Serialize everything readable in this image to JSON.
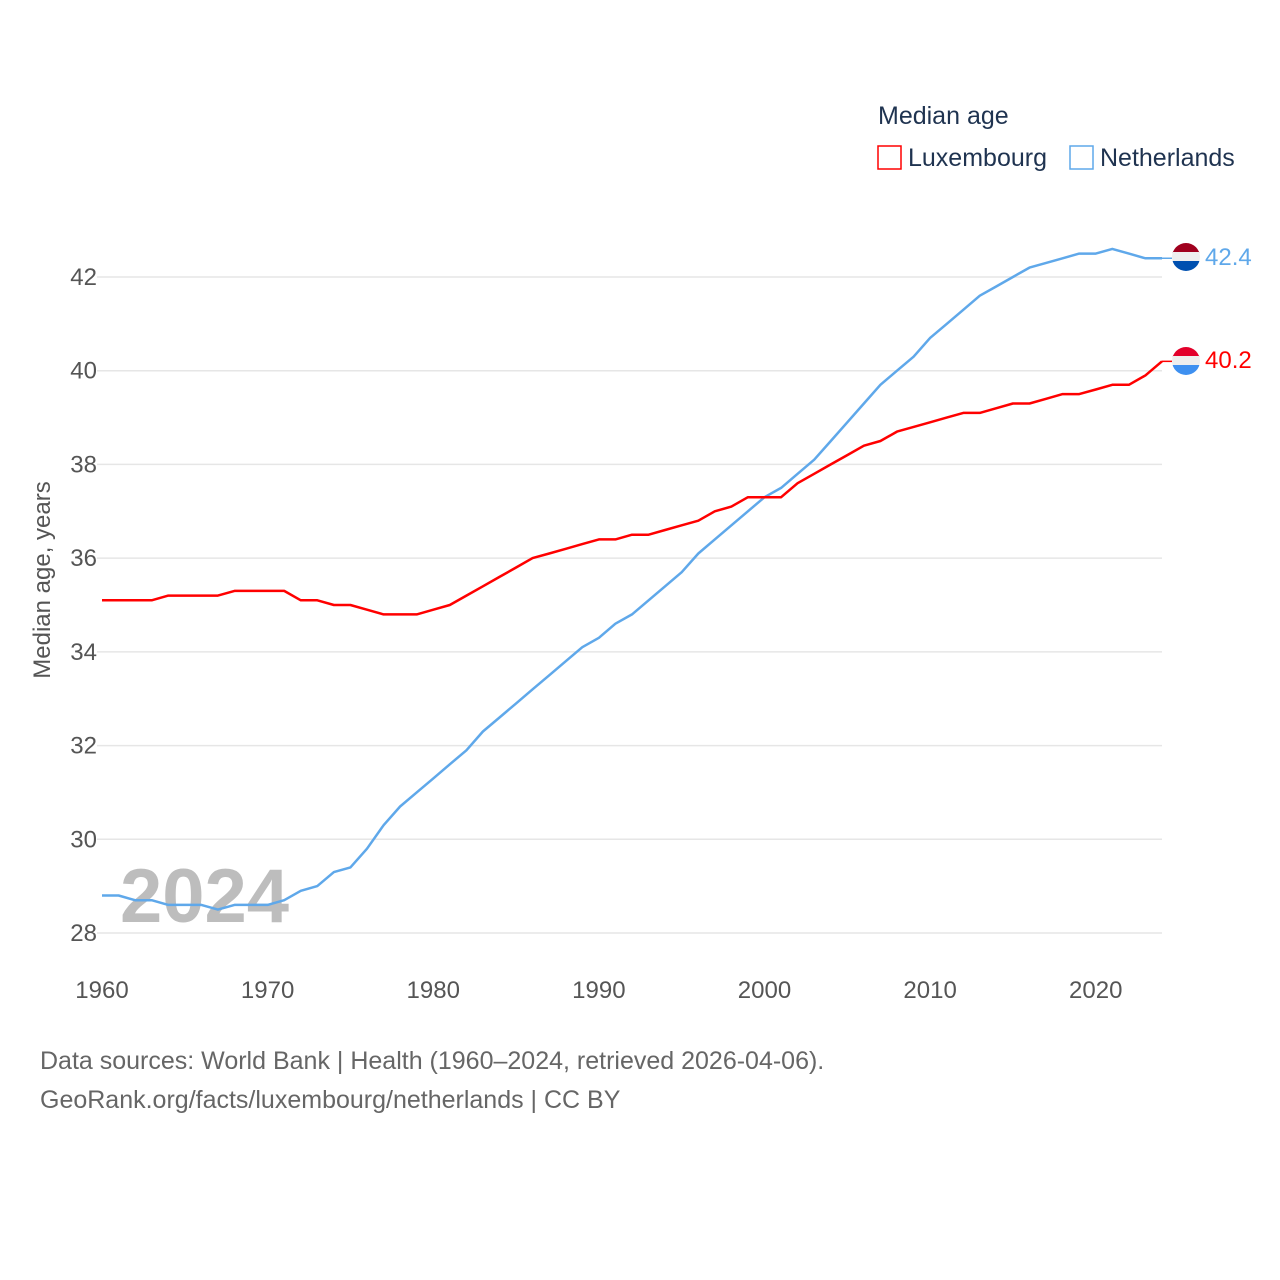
{
  "chart_data": {
    "type": "line",
    "ylabel": "Median age, years",
    "xlabel": "",
    "legend": {
      "title": "Median age",
      "placement": "top-right"
    },
    "watermark_year": "2024",
    "ylim": [
      28,
      43.3
    ],
    "xlim": [
      1960,
      2024
    ],
    "yticks": [
      28,
      30,
      32,
      34,
      36,
      38,
      40,
      42
    ],
    "xticks": [
      1960,
      1970,
      1980,
      1990,
      2000,
      2010,
      2020
    ],
    "grid": true,
    "x": [
      1960,
      1961,
      1962,
      1963,
      1964,
      1965,
      1966,
      1967,
      1968,
      1969,
      1970,
      1971,
      1972,
      1973,
      1974,
      1975,
      1976,
      1977,
      1978,
      1979,
      1980,
      1981,
      1982,
      1983,
      1984,
      1985,
      1986,
      1987,
      1988,
      1989,
      1990,
      1991,
      1992,
      1993,
      1994,
      1995,
      1996,
      1997,
      1998,
      1999,
      2000,
      2001,
      2002,
      2003,
      2004,
      2005,
      2006,
      2007,
      2008,
      2009,
      2010,
      2011,
      2012,
      2013,
      2014,
      2015,
      2016,
      2017,
      2018,
      2019,
      2020,
      2021,
      2022,
      2023,
      2024
    ],
    "series": [
      {
        "name": "Luxembourg",
        "color": "#ff0000",
        "end_label": "40.2",
        "values": [
          35.1,
          35.1,
          35.1,
          35.1,
          35.2,
          35.2,
          35.2,
          35.2,
          35.3,
          35.3,
          35.3,
          35.3,
          35.1,
          35.1,
          35.0,
          35.0,
          34.9,
          34.8,
          34.8,
          34.8,
          34.9,
          35.0,
          35.2,
          35.4,
          35.6,
          35.8,
          36.0,
          36.1,
          36.2,
          36.3,
          36.4,
          36.4,
          36.5,
          36.5,
          36.6,
          36.7,
          36.8,
          37.0,
          37.1,
          37.3,
          37.3,
          37.3,
          37.6,
          37.8,
          38.0,
          38.2,
          38.4,
          38.5,
          38.7,
          38.8,
          38.9,
          39.0,
          39.1,
          39.1,
          39.2,
          39.3,
          39.3,
          39.4,
          39.5,
          39.5,
          39.6,
          39.7,
          39.7,
          39.9,
          40.2
        ]
      },
      {
        "name": "Netherlands",
        "color": "#5fa8ea",
        "end_label": "42.4",
        "values": [
          28.8,
          28.8,
          28.7,
          28.7,
          28.6,
          28.6,
          28.6,
          28.5,
          28.6,
          28.6,
          28.6,
          28.7,
          28.9,
          29.0,
          29.3,
          29.4,
          29.8,
          30.3,
          30.7,
          31.0,
          31.3,
          31.6,
          31.9,
          32.3,
          32.6,
          32.9,
          33.2,
          33.5,
          33.8,
          34.1,
          34.3,
          34.6,
          34.8,
          35.1,
          35.4,
          35.7,
          36.1,
          36.4,
          36.7,
          37.0,
          37.3,
          37.5,
          37.8,
          38.1,
          38.5,
          38.9,
          39.3,
          39.7,
          40.0,
          40.3,
          40.7,
          41.0,
          41.3,
          41.6,
          41.8,
          42.0,
          42.2,
          42.3,
          42.4,
          42.5,
          42.5,
          42.6,
          42.5,
          42.4,
          42.4
        ]
      }
    ]
  },
  "footer": {
    "line1": "Data sources: World Bank | Health (1960–2024, retrieved 2026-04-06).",
    "line2": "GeoRank.org/facts/luxembourg/netherlands | CC BY"
  }
}
